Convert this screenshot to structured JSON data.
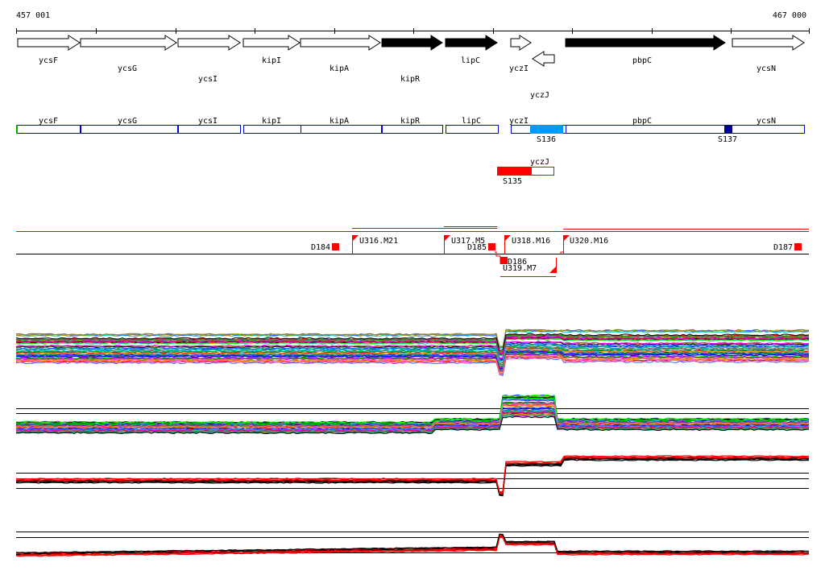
{
  "coords": {
    "start": "457 001",
    "end": "467 000"
  },
  "colors": {
    "gene_outline": "#000000",
    "gene_black_fill": "#000000",
    "transcript_outline": "#0000cc",
    "segment_light": "#0099ff",
    "segment_dark": "#000099",
    "segment_red": "#ff0000",
    "segment_green": "#00aa00",
    "breakpoint_red": "#ff0000"
  },
  "genes": [
    {
      "name": "ycsF",
      "strand": "+",
      "filled": false
    },
    {
      "name": "ycsG",
      "strand": "+",
      "filled": false
    },
    {
      "name": "ycsI",
      "strand": "+",
      "filled": false
    },
    {
      "name": "kipI",
      "strand": "+",
      "filled": false
    },
    {
      "name": "kipA",
      "strand": "+",
      "filled": false
    },
    {
      "name": "kipR",
      "strand": "+",
      "filled": true
    },
    {
      "name": "lipC",
      "strand": "+",
      "filled": true
    },
    {
      "name": "yczI",
      "strand": "+",
      "filled": false
    },
    {
      "name": "yczJ",
      "strand": "-",
      "filled": false
    },
    {
      "name": "pbpC",
      "strand": "+",
      "filled": true
    },
    {
      "name": "ycsN",
      "strand": "+",
      "filled": false
    }
  ],
  "transcripts_top": [
    {
      "name": "ycsF"
    },
    {
      "name": "ycsG"
    },
    {
      "name": "ycsI"
    },
    {
      "name": "kipI"
    },
    {
      "name": "kipA"
    },
    {
      "name": "kipR"
    },
    {
      "name": "lipC"
    },
    {
      "name": "yczI"
    },
    {
      "name": "pbpC"
    },
    {
      "name": "ycsN"
    }
  ],
  "segments": [
    {
      "label": "S136"
    },
    {
      "label": "S137"
    },
    {
      "label": "S135"
    }
  ],
  "transcript_bottom": {
    "name": "yczJ"
  },
  "breakpoints": [
    {
      "label": "D184"
    },
    {
      "label": "U316.M21"
    },
    {
      "label": "U317.M5"
    },
    {
      "label": "D185"
    },
    {
      "label": "U318.M16"
    },
    {
      "label": "D186"
    },
    {
      "label": "U319.M7"
    },
    {
      "label": "U320.M16"
    },
    {
      "label": "D187"
    }
  ]
}
